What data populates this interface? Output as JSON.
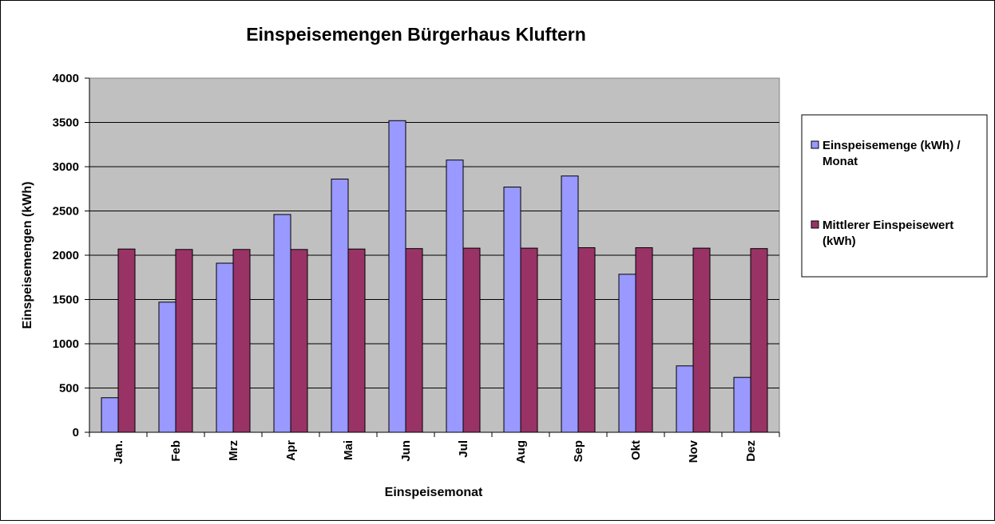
{
  "chart_data": {
    "type": "bar",
    "title": "Einspeisemengen Bürgerhaus Kluftern",
    "xlabel": "Einspeisemonat",
    "ylabel": "Einspeisemengen (kWh)",
    "ylim": [
      0,
      4000
    ],
    "yticks": [
      0,
      500,
      1000,
      1500,
      2000,
      2500,
      3000,
      3500,
      4000
    ],
    "grid": true,
    "legend_position": "right",
    "plot_background": "#C0C0C0",
    "categories": [
      "Jan.",
      "Feb",
      "Mrz",
      "Apr",
      "Mai",
      "Jun",
      "Jul",
      "Aug",
      "Sep",
      "Okt",
      "Nov",
      "Dez"
    ],
    "series": [
      {
        "name": "Einspeisemenge (kWh) / Monat",
        "legend_lines": [
          "Einspeisemenge (kWh) /",
          "Monat"
        ],
        "color": "#9999FF",
        "values": [
          390,
          1470,
          1910,
          2460,
          2860,
          3520,
          3075,
          2770,
          2895,
          1785,
          750,
          620
        ]
      },
      {
        "name": "Mittlerer Einspeisewert (kWh)",
        "legend_lines": [
          "Mittlerer Einspeisewert",
          "(kWh)"
        ],
        "color": "#993366",
        "values": [
          2070,
          2065,
          2065,
          2065,
          2070,
          2075,
          2080,
          2080,
          2085,
          2085,
          2080,
          2075
        ]
      }
    ]
  }
}
